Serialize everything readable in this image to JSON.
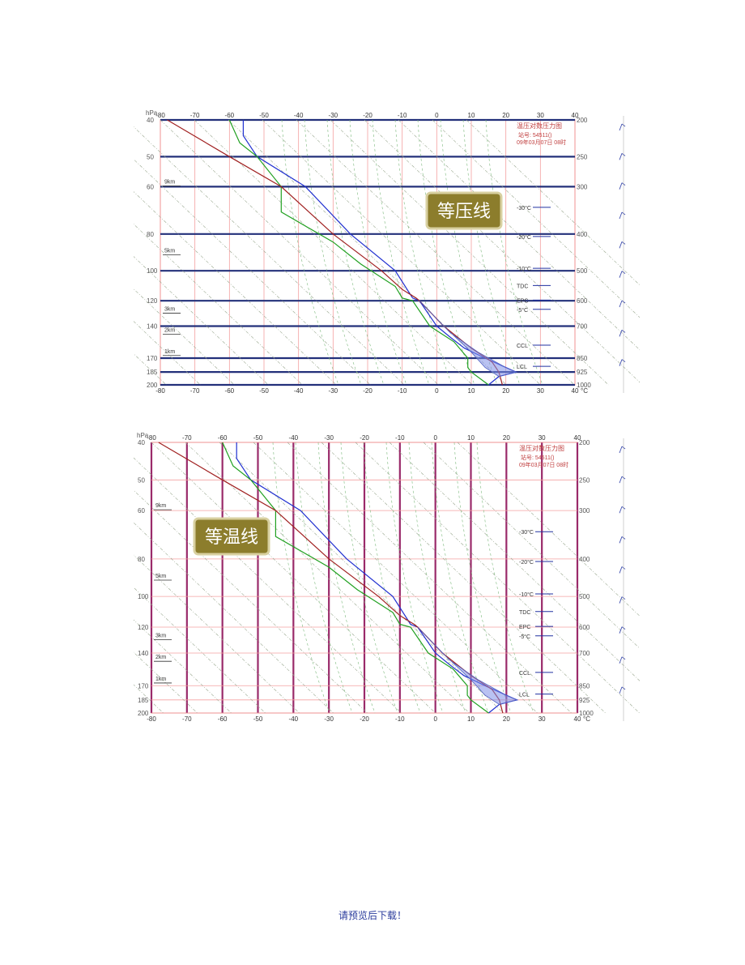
{
  "document": {
    "footer_text": "请预览后下载！"
  },
  "chart_common": {
    "pressure_unit": "hPa",
    "temp_unit": "°C",
    "x_ticks": [
      -80,
      -70,
      -60,
      -50,
      -40,
      -30,
      -20,
      -10,
      0,
      10,
      20,
      30,
      40
    ],
    "left_ticks": [
      "40",
      "50",
      "60",
      "80",
      "100",
      "120",
      "140",
      "170",
      "185",
      "200"
    ],
    "right_ticks": [
      "200",
      "250",
      "300",
      "400",
      "500",
      "600",
      "700",
      "850",
      "925",
      "1000"
    ],
    "height_labels": [
      "9km",
      "5km",
      "3km",
      "2km",
      "1km"
    ],
    "legend_title": "温压对数压力图",
    "legend_line2": "站号: 54511()",
    "legend_line3": "09年03月07日 08时",
    "level_labels": [
      "-30°C",
      "-20°C",
      "-10°C",
      "TDC",
      "EPC",
      "-5°C",
      "CCL",
      "LCL"
    ],
    "colors": {
      "frame": "#e06060",
      "grid": "#f4a0a0",
      "temperature": "#2030d0",
      "dewpoint": "#20a020",
      "state_curve": "#a02020",
      "cape_fill": "#8090e8",
      "isobar_highlight": "#23307a",
      "isotherm_highlight": "#9a2a6a",
      "label_box_bg": "#8c7d2c"
    }
  },
  "chart_data": [
    {
      "type": "line",
      "title": "",
      "highlight": "isobars",
      "annotation_label": "等压线",
      "x_unit": "°C",
      "y_axis": "pressure (log)",
      "series": [
        {
          "values_temp_pressure": [
            [
              -56,
              200
            ],
            [
              -56,
              220
            ],
            [
              -52,
              250
            ],
            [
              -38,
              300
            ],
            [
              -25,
              400
            ],
            [
              -12,
              500
            ],
            [
              -7,
              590
            ],
            [
              -5,
              600
            ],
            [
              0,
              700
            ],
            [
              4,
              750
            ],
            [
              8,
              800
            ],
            [
              14,
              850
            ],
            [
              20,
              900
            ],
            [
              23,
              925
            ],
            [
              18,
              950
            ],
            [
              15,
              1000
            ]
          ]
        },
        {
          "values_temp_pressure": [
            [
              -60,
              200
            ],
            [
              -57,
              230
            ],
            [
              -52,
              250
            ],
            [
              -45,
              300
            ],
            [
              -45,
              350
            ],
            [
              -30,
              420
            ],
            [
              -22,
              480
            ],
            [
              -12,
              550
            ],
            [
              -10,
              590
            ],
            [
              -7,
              600
            ],
            [
              -2,
              700
            ],
            [
              5,
              770
            ],
            [
              9,
              850
            ],
            [
              9,
              900
            ],
            [
              10,
              925
            ],
            [
              15,
              1000
            ]
          ]
        },
        {
          "values_temp_pressure": [
            [
              -78,
              200
            ],
            [
              -60,
              250
            ],
            [
              -45,
              300
            ],
            [
              -30,
              400
            ],
            [
              -16,
              500
            ],
            [
              -10,
              560
            ],
            [
              -6,
              590
            ],
            [
              -5,
              600
            ],
            [
              2,
              700
            ],
            [
              10,
              800
            ],
            [
              16,
              870
            ],
            [
              18,
              925
            ],
            [
              19,
              1000
            ]
          ]
        }
      ]
    },
    {
      "type": "line",
      "title": "",
      "highlight": "isotherms",
      "annotation_label": "等温线"
    }
  ]
}
